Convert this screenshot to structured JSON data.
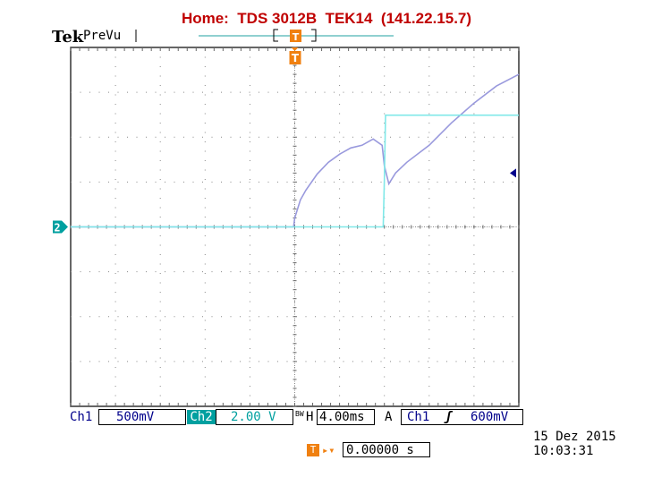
{
  "header": {
    "title": "Home:  TDS 3012B  TEK14  (141.22.15.7)"
  },
  "scope": {
    "brand": "Tek",
    "status": "PreVu"
  },
  "markers": {
    "trigger_top": "T",
    "trigger_screen": "T",
    "ch2_marker": "2"
  },
  "readout": {
    "ch1_label": "Ch1",
    "ch1_scale": "500mV",
    "ch2_label": "Ch2",
    "ch2_scale": "2.00 V",
    "bw_limit": "BW",
    "h_label": "H",
    "timebase": "4.00ms",
    "trig_mode": "A",
    "trig_source": "Ch1",
    "trig_slope": "ʃ",
    "trig_level": "600mV",
    "trig_pos_icon": "T",
    "trig_pos_arrow": "▸▾",
    "trig_position": "0.00000 s",
    "date": "15 Dez  2015",
    "time": "10:03:31"
  },
  "colors": {
    "ch1": "#9999dd",
    "ch2": "#80e8e8",
    "grid": "#888888",
    "trigger": "#f08010",
    "ch2_marker": "#00a0a0",
    "ch1_level_arrow": "#00008b"
  },
  "chart_data": {
    "type": "line",
    "title": "",
    "xlabel": "",
    "ylabel": "",
    "x_units": "ms",
    "x_range": [
      -20,
      20
    ],
    "x_div": 10,
    "y_div": 8,
    "grid": true,
    "trigger_time_ms": 0,
    "series": [
      {
        "name": "Ch1",
        "scale": "500mV/div",
        "y_units": "V",
        "x": [
          -20,
          -15,
          -10,
          -5,
          -0.1,
          0,
          0.5,
          1,
          2,
          3,
          4,
          5,
          6,
          7,
          7.8,
          8,
          8.4,
          9,
          10,
          12,
          14,
          16,
          18,
          20
        ],
        "y": [
          0,
          0,
          0,
          0,
          0,
          0.1,
          0.3,
          0.41,
          0.59,
          0.72,
          0.81,
          0.88,
          0.91,
          0.98,
          0.91,
          0.68,
          0.48,
          0.6,
          0.72,
          0.91,
          1.16,
          1.38,
          1.57,
          1.7
        ]
      },
      {
        "name": "Ch2",
        "scale": "2.00 V/div",
        "y_units": "V",
        "x": [
          -20,
          -10,
          0,
          5,
          7.9,
          8.0,
          8.1,
          8.2,
          12,
          16,
          20
        ],
        "y": [
          0,
          0,
          0,
          0,
          0,
          2.12,
          4.98,
          4.98,
          4.98,
          4.98,
          4.98
        ]
      }
    ],
    "annotations": [
      "ch1 level arrow at 600mV",
      "ch2 ground marker at 0V"
    ]
  }
}
